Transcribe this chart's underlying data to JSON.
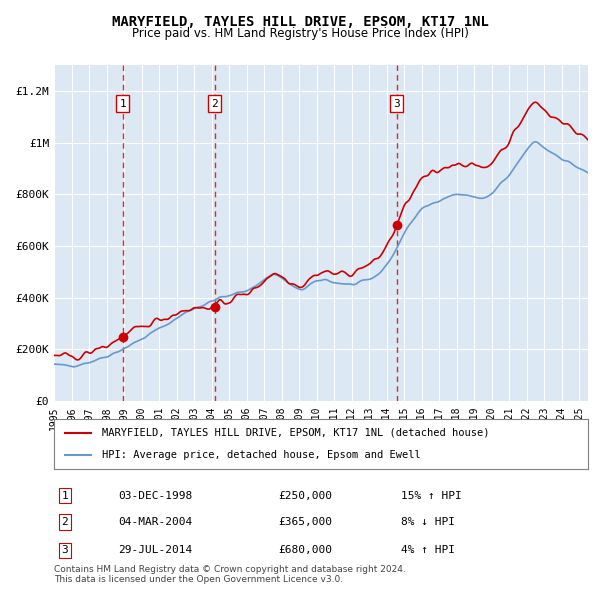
{
  "title": "MARYFIELD, TAYLES HILL DRIVE, EPSOM, KT17 1NL",
  "subtitle": "Price paid vs. HM Land Registry's House Price Index (HPI)",
  "title_fontsize": 11,
  "subtitle_fontsize": 9,
  "xlabel": "",
  "ylabel": "",
  "ylim": [
    0,
    1300000
  ],
  "xlim_start": 1995.0,
  "xlim_end": 2025.5,
  "yticks": [
    0,
    200000,
    400000,
    600000,
    800000,
    1000000,
    1200000
  ],
  "ytick_labels": [
    "£0",
    "£200K",
    "£400K",
    "£600K",
    "£800K",
    "£1M",
    "£1.2M"
  ],
  "xticks": [
    1995,
    1996,
    1997,
    1998,
    1999,
    2000,
    2001,
    2002,
    2003,
    2004,
    2005,
    2006,
    2007,
    2008,
    2009,
    2010,
    2011,
    2012,
    2013,
    2014,
    2015,
    2016,
    2017,
    2018,
    2019,
    2020,
    2021,
    2022,
    2023,
    2024,
    2025
  ],
  "background_color": "#ffffff",
  "plot_bg_color": "#dce9f5",
  "grid_color": "#ffffff",
  "hpi_line_color": "#6699cc",
  "price_line_color": "#cc0000",
  "transaction_marker_color": "#cc0000",
  "dashed_line_color": "#cc0000",
  "sale_shading_color": "#dce9f5",
  "transactions": [
    {
      "year": 1998.92,
      "price": 250000,
      "label": "1"
    },
    {
      "year": 2004.17,
      "price": 365000,
      "label": "2"
    },
    {
      "year": 2014.57,
      "price": 680000,
      "label": "3"
    }
  ],
  "legend_entries": [
    {
      "label": "MARYFIELD, TAYLES HILL DRIVE, EPSOM, KT17 1NL (detached house)",
      "color": "#cc0000",
      "lw": 1.5
    },
    {
      "label": "HPI: Average price, detached house, Epsom and Ewell",
      "color": "#6699cc",
      "lw": 1.5
    }
  ],
  "table_rows": [
    {
      "num": "1",
      "date": "03-DEC-1998",
      "price": "£250,000",
      "hpi": "15% ↑ HPI"
    },
    {
      "num": "2",
      "date": "04-MAR-2004",
      "price": "£365,000",
      "hpi": "8% ↓ HPI"
    },
    {
      "num": "3",
      "date": "29-JUL-2014",
      "price": "£680,000",
      "hpi": "4% ↑ HPI"
    }
  ],
  "footer": "Contains HM Land Registry data © Crown copyright and database right 2024.\nThis data is licensed under the Open Government Licence v3.0.",
  "sale_regions": [
    {
      "start": 1998.92,
      "end": 2004.17
    },
    {
      "start": 2014.57,
      "end": 2025.5
    }
  ]
}
